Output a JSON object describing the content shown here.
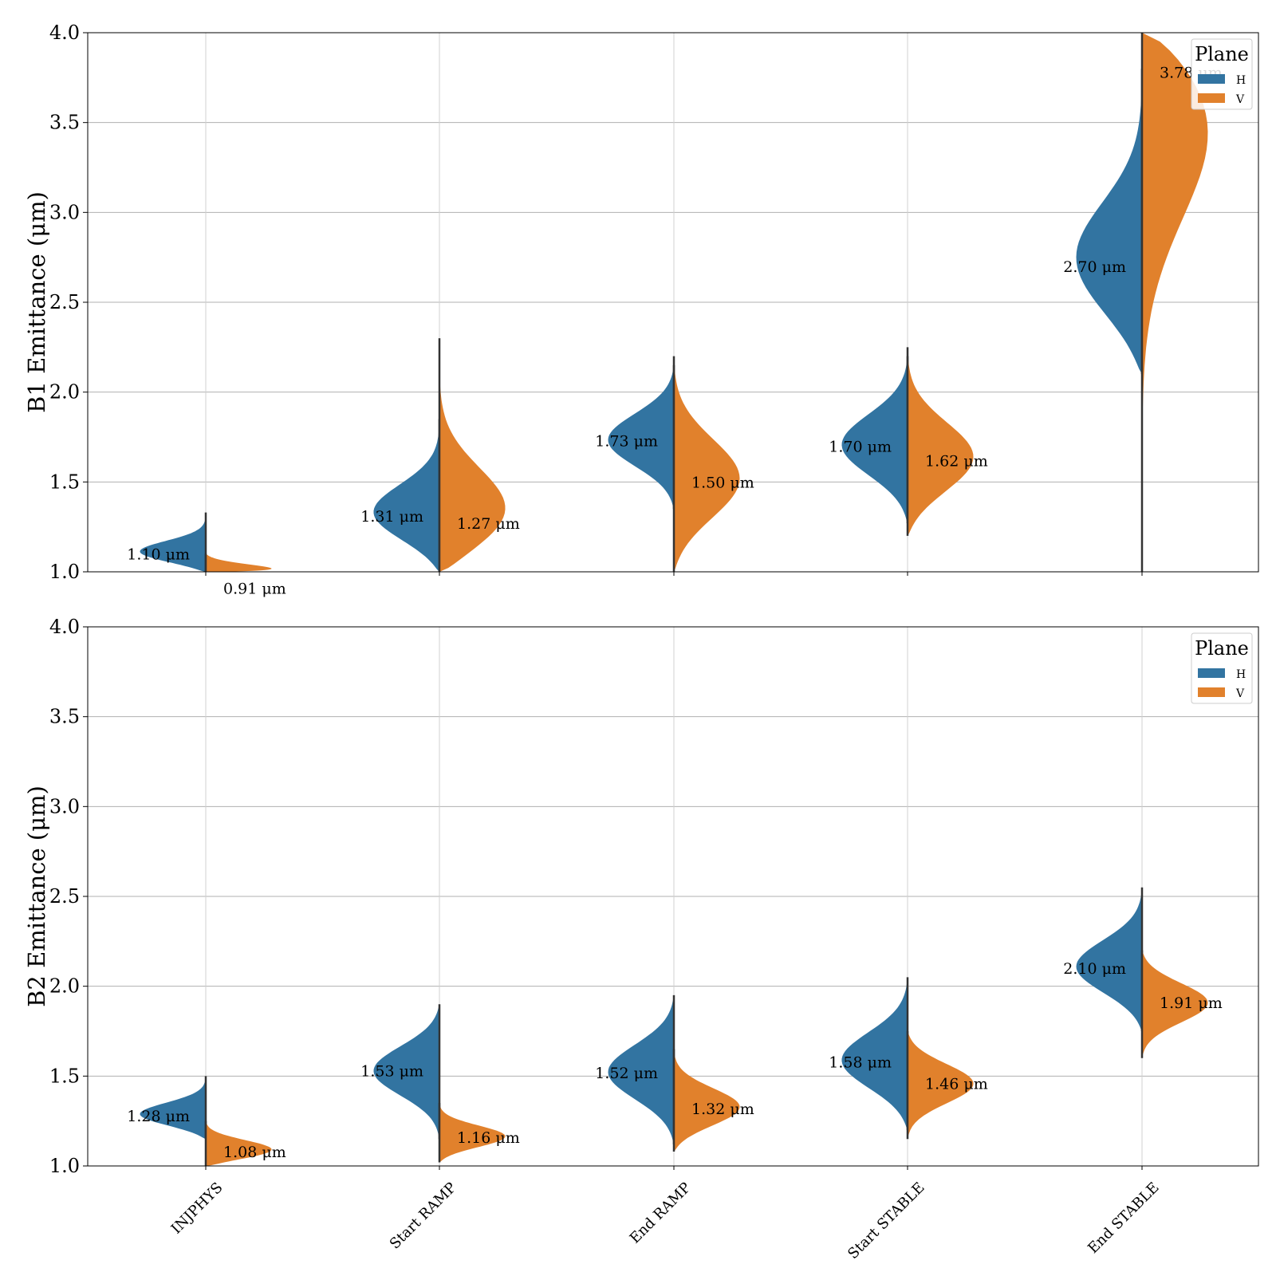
{
  "chart_data": [
    {
      "type": "violin",
      "ylabel": "B1 Emittance (μm)",
      "ylim": [
        1.0,
        4.0
      ],
      "yticks": [
        "1.0",
        "1.5",
        "2.0",
        "2.5",
        "3.0",
        "3.5",
        "4.0"
      ],
      "grid": true,
      "categories": [
        "INJPHYS",
        "Start RAMP",
        "End RAMP",
        "Start STABLE",
        "End STABLE"
      ],
      "show_category_labels": false,
      "legend": {
        "title": "Plane",
        "position": "top-right",
        "entries": [
          "H",
          "V"
        ]
      },
      "series": [
        {
          "name": "H",
          "color": "#3274a1",
          "medians": [
            1.1,
            1.31,
            1.73,
            1.7,
            2.7
          ],
          "median_labels": [
            "1.10 μm",
            "1.31 μm",
            "1.73 μm",
            "1.70 μm",
            "2.70 μm"
          ],
          "extent": [
            [
              1.0,
              1.33
            ],
            [
              1.0,
              1.85
            ],
            [
              1.35,
              2.15
            ],
            [
              1.27,
              2.2
            ],
            [
              2.1,
              3.8
            ]
          ]
        },
        {
          "name": "V",
          "color": "#e1812c",
          "medians": [
            0.91,
            1.27,
            1.5,
            1.62,
            3.78
          ],
          "median_labels": [
            "0.91 μm",
            "1.27 μm",
            "1.50 μm",
            "1.62 μm",
            "3.78 μm"
          ],
          "extent": [
            [
              1.0,
              1.1
            ],
            [
              1.0,
              2.3
            ],
            [
              1.0,
              2.2
            ],
            [
              1.2,
              2.25
            ],
            [
              1.0,
              4.0
            ]
          ]
        }
      ]
    },
    {
      "type": "violin",
      "ylabel": "B2 Emittance (μm)",
      "ylim": [
        1.0,
        4.0
      ],
      "yticks": [
        "1.0",
        "1.5",
        "2.0",
        "2.5",
        "3.0",
        "3.5",
        "4.0"
      ],
      "grid": true,
      "categories": [
        "INJPHYS",
        "Start RAMP",
        "End RAMP",
        "Start STABLE",
        "End STABLE"
      ],
      "show_category_labels": true,
      "legend": {
        "title": "Plane",
        "position": "top-right",
        "entries": [
          "H",
          "V"
        ]
      },
      "series": [
        {
          "name": "H",
          "color": "#3274a1",
          "medians": [
            1.28,
            1.53,
            1.52,
            1.58,
            2.1
          ],
          "median_labels": [
            "1.28 μm",
            "1.53 μm",
            "1.52 μm",
            "1.58 μm",
            "2.10 μm"
          ],
          "extent": [
            [
              1.15,
              1.5
            ],
            [
              1.15,
              1.9
            ],
            [
              1.12,
              1.95
            ],
            [
              1.2,
              2.05
            ],
            [
              1.75,
              2.55
            ]
          ]
        },
        {
          "name": "V",
          "color": "#e1812c",
          "medians": [
            1.08,
            1.16,
            1.32,
            1.46,
            1.91
          ],
          "median_labels": [
            "1.08 μm",
            "1.16 μm",
            "1.32 μm",
            "1.46 μm",
            "1.91 μm"
          ],
          "extent": [
            [
              1.0,
              1.25
            ],
            [
              1.02,
              1.35
            ],
            [
              1.08,
              1.65
            ],
            [
              1.15,
              1.75
            ],
            [
              1.6,
              2.2
            ]
          ]
        }
      ]
    }
  ]
}
